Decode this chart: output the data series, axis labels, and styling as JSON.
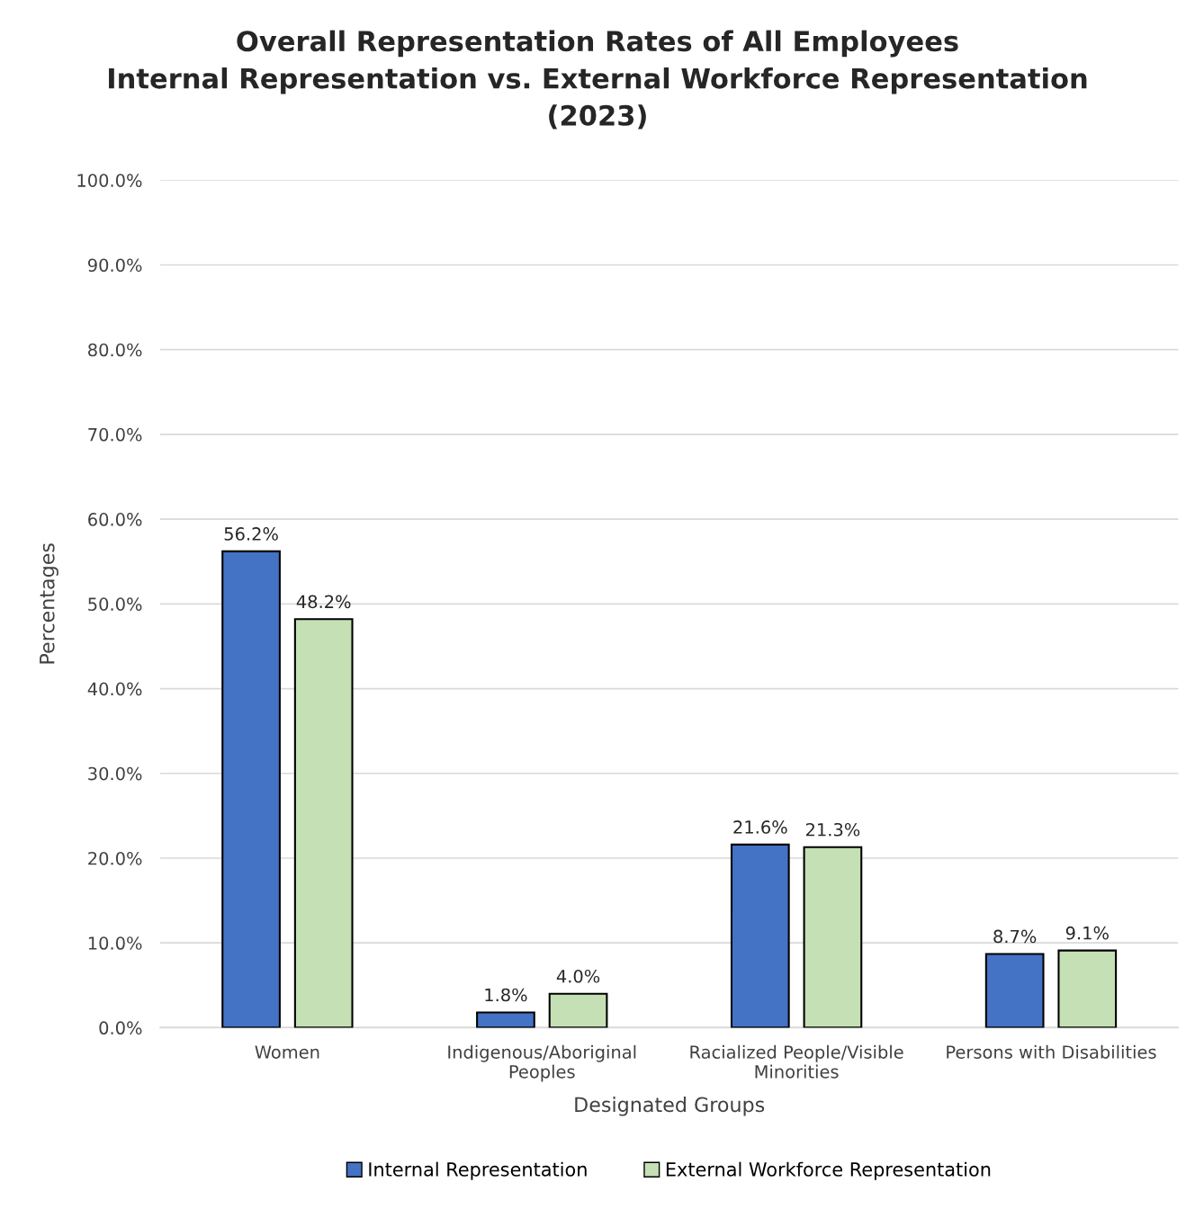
{
  "chart_data": {
    "type": "bar",
    "title": "Overall Representation Rates of All Employees\nInternal Representation vs. External Workforce Representation\n(2023)",
    "xlabel": "Designated Groups",
    "ylabel": "Percentages",
    "categories": [
      "Women",
      "Indigenous/Aboriginal\nPeoples",
      "Racialized People/Visible\nMinorities",
      "Persons with Disabilities"
    ],
    "series": [
      {
        "name": "Internal Representation",
        "color": "#4472c4",
        "values": [
          56.2,
          1.8,
          21.6,
          8.7
        ],
        "value_labels": [
          "56.2%",
          "1.8%",
          "21.6%",
          "8.7%"
        ]
      },
      {
        "name": "External Workforce Representation",
        "color": "#c5e0b4",
        "values": [
          48.2,
          4.0,
          21.3,
          9.1
        ],
        "value_labels": [
          "48.2%",
          "4.0%",
          "21.3%",
          "9.1%"
        ]
      }
    ],
    "ylim": [
      0,
      100
    ],
    "yticks": [
      {
        "value": 0,
        "label": "0.0%"
      },
      {
        "value": 10,
        "label": "10.0%"
      },
      {
        "value": 20,
        "label": "20.0%"
      },
      {
        "value": 30,
        "label": "30.0%"
      },
      {
        "value": 40,
        "label": "40.0%"
      },
      {
        "value": 50,
        "label": "50.0%"
      },
      {
        "value": 60,
        "label": "60.0%"
      },
      {
        "value": 70,
        "label": "70.0%"
      },
      {
        "value": 80,
        "label": "80.0%"
      },
      {
        "value": 90,
        "label": "90.0%"
      },
      {
        "value": 100,
        "label": "100.0%"
      }
    ],
    "grid": "y",
    "legend": "bottom"
  }
}
